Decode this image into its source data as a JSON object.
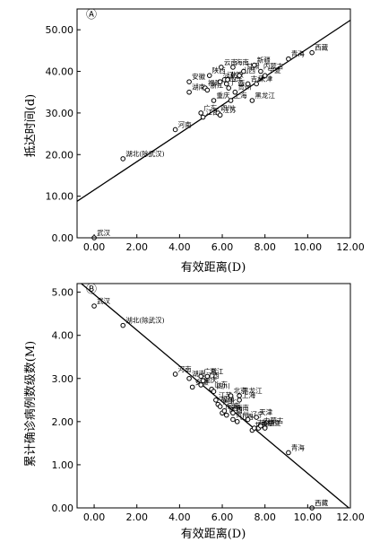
{
  "chart_data": [
    {
      "type": "scatter",
      "panel_label": "Ⓐ",
      "xlabel": "有效距离(D)",
      "ylabel": "抵达时间(d)",
      "xlim": [
        -0.8,
        12.0
      ],
      "ylim": [
        0,
        55
      ],
      "x_ticks": [
        0,
        2,
        4,
        6,
        8,
        10,
        12
      ],
      "x_tick_labels": [
        "0.00",
        "2.00",
        "4.00",
        "6.00",
        "8.00",
        "10.00",
        "12.00"
      ],
      "y_ticks": [
        0,
        10,
        20,
        30,
        40,
        50
      ],
      "y_tick_labels": [
        "0.00",
        "10.00",
        "20.00",
        "30.00",
        "40.00",
        "50.00"
      ],
      "fit_line": {
        "intercept": 11.5,
        "slope": 3.4
      },
      "points": [
        {
          "label": "武汉",
          "x": 0.0,
          "y": 0.0
        },
        {
          "label": "湖北(除武汉)",
          "x": 1.35,
          "y": 19.0
        },
        {
          "label": "河南",
          "x": 3.8,
          "y": 26.0
        },
        {
          "label": "湖南",
          "x": 4.45,
          "y": 35.0
        },
        {
          "label": "安徽",
          "x": 4.45,
          "y": 37.5
        },
        {
          "label": "广东",
          "x": 5.0,
          "y": 30.0
        },
        {
          "label": "江西",
          "x": 5.1,
          "y": 29.0
        },
        {
          "label": "福建",
          "x": 5.2,
          "y": 36.0
        },
        {
          "label": "浙江",
          "x": 5.3,
          "y": 35.5
        },
        {
          "label": "陕西",
          "x": 5.4,
          "y": 39.0
        },
        {
          "label": "重庆",
          "x": 5.6,
          "y": 33.0
        },
        {
          "label": "四川",
          "x": 5.8,
          "y": 30.0
        },
        {
          "label": "江苏",
          "x": 5.9,
          "y": 29.5
        },
        {
          "label": "河北",
          "x": 5.9,
          "y": 37.5
        },
        {
          "label": "云南",
          "x": 5.95,
          "y": 41.0
        },
        {
          "label": "辽宁",
          "x": 6.1,
          "y": 38.0
        },
        {
          "label": "山东",
          "x": 6.2,
          "y": 37.0
        },
        {
          "label": "北京",
          "x": 6.25,
          "y": 38.0
        },
        {
          "label": "广西",
          "x": 6.3,
          "y": 36.0
        },
        {
          "label": "上海",
          "x": 6.4,
          "y": 33.0
        },
        {
          "label": "海南",
          "x": 6.5,
          "y": 41.0
        },
        {
          "label": "贵州",
          "x": 6.6,
          "y": 35.0
        },
        {
          "label": "山西",
          "x": 6.8,
          "y": 39.0
        },
        {
          "label": "甘肃",
          "x": 7.0,
          "y": 40.0
        },
        {
          "label": "吉林",
          "x": 7.2,
          "y": 37.0
        },
        {
          "label": "黑龙江",
          "x": 7.4,
          "y": 33.0
        },
        {
          "label": "新疆",
          "x": 7.5,
          "y": 41.5
        },
        {
          "label": "天津",
          "x": 7.6,
          "y": 37.0
        },
        {
          "label": "内蒙古",
          "x": 7.8,
          "y": 40.0
        },
        {
          "label": "宁夏",
          "x": 8.0,
          "y": 39.0
        },
        {
          "label": "青海",
          "x": 9.1,
          "y": 43.0
        },
        {
          "label": "西藏",
          "x": 10.2,
          "y": 44.5
        }
      ]
    },
    {
      "type": "scatter",
      "panel_label": "Ⓑ",
      "xlabel": "有效距离(D)",
      "ylabel": "累计确诊病例数级数(M)",
      "xlim": [
        -0.8,
        12.0
      ],
      "ylim": [
        0,
        5.2
      ],
      "x_ticks": [
        0,
        2,
        4,
        6,
        8,
        10,
        12
      ],
      "x_tick_labels": [
        "0.00",
        "2.00",
        "4.00",
        "6.00",
        "8.00",
        "10.00",
        "12.00"
      ],
      "y_ticks": [
        0,
        1,
        2,
        3,
        4,
        5
      ],
      "y_tick_labels": [
        "0.00",
        "1.00",
        "2.00",
        "3.00",
        "4.00",
        "5.00"
      ],
      "fit_line": {
        "intercept": 4.95,
        "slope": -0.415
      },
      "points": [
        {
          "label": "武汉",
          "x": 0.0,
          "y": 4.68
        },
        {
          "label": "湖北(除武汉)",
          "x": 1.35,
          "y": 4.23
        },
        {
          "label": "河南",
          "x": 3.8,
          "y": 3.1
        },
        {
          "label": "湖南",
          "x": 4.45,
          "y": 3.0
        },
        {
          "label": "广东",
          "x": 5.0,
          "y": 3.05
        },
        {
          "label": "安徽",
          "x": 4.6,
          "y": 2.8
        },
        {
          "label": "重庆",
          "x": 5.0,
          "y": 2.85
        },
        {
          "label": "江西",
          "x": 5.1,
          "y": 2.95
        },
        {
          "label": "浙江",
          "x": 5.3,
          "y": 3.05
        },
        {
          "label": "山东",
          "x": 5.5,
          "y": 2.75
        },
        {
          "label": "四川",
          "x": 5.6,
          "y": 2.7
        },
        {
          "label": "江苏",
          "x": 5.7,
          "y": 2.5
        },
        {
          "label": "福建",
          "x": 5.8,
          "y": 2.4
        },
        {
          "label": "河北",
          "x": 5.9,
          "y": 2.35
        },
        {
          "label": "广西",
          "x": 6.0,
          "y": 2.2
        },
        {
          "label": "云南",
          "x": 6.1,
          "y": 2.25
        },
        {
          "label": "陕西",
          "x": 6.2,
          "y": 2.15
        },
        {
          "label": "北京",
          "x": 6.4,
          "y": 2.6
        },
        {
          "label": "海南",
          "x": 6.5,
          "y": 2.2
        },
        {
          "label": "贵州",
          "x": 6.5,
          "y": 2.05
        },
        {
          "label": "山西",
          "x": 6.7,
          "y": 2.0
        },
        {
          "label": "黑龙江",
          "x": 6.8,
          "y": 2.6
        },
        {
          "label": "上海",
          "x": 6.8,
          "y": 2.5
        },
        {
          "label": "辽宁",
          "x": 7.2,
          "y": 2.05
        },
        {
          "label": "甘肃",
          "x": 7.4,
          "y": 1.8
        },
        {
          "label": "吉林",
          "x": 7.5,
          "y": 1.85
        },
        {
          "label": "天津",
          "x": 7.6,
          "y": 2.1
        },
        {
          "label": "新疆",
          "x": 7.7,
          "y": 1.85
        },
        {
          "label": "内蒙古",
          "x": 7.8,
          "y": 1.9
        },
        {
          "label": "宁夏",
          "x": 8.0,
          "y": 1.85
        },
        {
          "label": "青海",
          "x": 9.1,
          "y": 1.28
        },
        {
          "label": "西藏",
          "x": 10.2,
          "y": 0.0
        }
      ]
    }
  ]
}
